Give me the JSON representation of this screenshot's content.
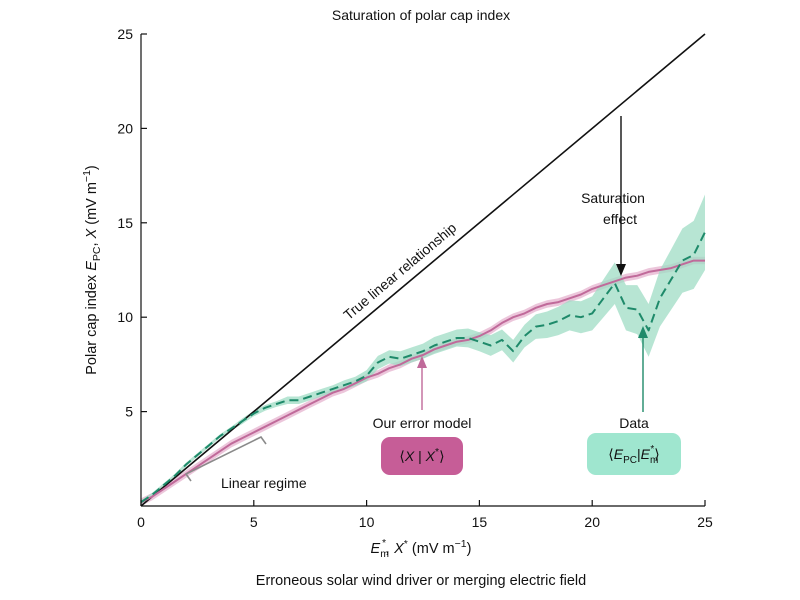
{
  "chart_data": {
    "type": "line",
    "title": "Saturation of polar cap index",
    "caption": "Erroneous solar wind driver or merging electric field",
    "xlim": [
      0,
      25
    ],
    "ylim": [
      0,
      25
    ],
    "grid": false,
    "x_ticks": [
      "0",
      "5",
      "10",
      "15",
      "20",
      "25"
    ],
    "y_ticks": [
      "5",
      "10",
      "15",
      "20",
      "25"
    ],
    "xlabel": {
      "prefix": "E",
      "sub": "m",
      "sup": "*",
      "middle": ", X",
      "sup2": "*",
      "units": " (mV m",
      "units_sup": "−1",
      "close": ")"
    },
    "ylabel": {
      "prefix": "Polar cap index ",
      "var": "E",
      "sub": "PC",
      "middle": ", ",
      "var2": "X",
      "units": " (mV m",
      "units_sup": "−1",
      "close": ")"
    },
    "series": [
      {
        "name": "True linear relationship",
        "color": "#111111",
        "x": [
          0,
          25
        ],
        "y": [
          0,
          25
        ]
      },
      {
        "name": "Our error model",
        "color": "#c06a9a",
        "band_color": "#e6b3cf",
        "x": [
          0,
          0.5,
          1,
          1.5,
          2,
          2.5,
          3,
          3.5,
          4,
          4.5,
          5,
          5.5,
          6,
          6.5,
          7,
          7.5,
          8,
          8.5,
          9,
          9.5,
          10,
          10.5,
          11,
          11.5,
          12,
          12.5,
          13,
          13.5,
          14,
          14.5,
          15,
          15.5,
          16,
          16.5,
          17,
          17.5,
          18,
          18.5,
          19,
          19.5,
          20,
          20.5,
          21,
          21.5,
          22,
          22.5,
          23,
          23.5,
          24,
          24.5,
          25
        ],
        "y": [
          0.2,
          0.5,
          0.9,
          1.3,
          1.7,
          2.1,
          2.5,
          2.9,
          3.3,
          3.6,
          3.9,
          4.2,
          4.5,
          4.8,
          5.1,
          5.4,
          5.7,
          6.0,
          6.2,
          6.5,
          6.8,
          7.0,
          7.3,
          7.5,
          7.8,
          8.0,
          8.3,
          8.5,
          8.7,
          8.8,
          9.0,
          9.3,
          9.7,
          10.0,
          10.2,
          10.5,
          10.7,
          10.8,
          11.0,
          11.2,
          11.5,
          11.7,
          11.9,
          12.1,
          12.2,
          12.4,
          12.5,
          12.6,
          12.8,
          13.0,
          13.0
        ],
        "band": 0.2
      },
      {
        "name": "Data",
        "color": "#1e8a6a",
        "band_color": "#9fdcc4",
        "x": [
          0,
          0.5,
          1,
          1.5,
          2,
          2.5,
          3,
          3.5,
          4,
          4.5,
          5,
          5.5,
          6,
          6.5,
          7,
          7.5,
          8,
          8.5,
          9,
          9.5,
          10,
          10.5,
          11,
          11.5,
          12,
          12.5,
          13,
          13.5,
          14,
          14.5,
          15,
          15.5,
          16,
          16.5,
          17,
          17.5,
          18,
          18.5,
          19,
          19.5,
          20,
          20.5,
          21,
          21.5,
          22,
          22.5,
          23,
          23.5,
          24,
          24.5,
          25
        ],
        "y": [
          0.2,
          0.6,
          1.1,
          1.6,
          2.2,
          2.7,
          3.2,
          3.7,
          4.1,
          4.5,
          4.9,
          5.2,
          5.4,
          5.6,
          5.6,
          5.8,
          6.0,
          6.2,
          6.4,
          6.6,
          6.9,
          7.6,
          7.9,
          7.8,
          8.0,
          8.2,
          8.5,
          8.7,
          8.9,
          8.9,
          8.7,
          8.5,
          8.8,
          8.2,
          9.0,
          9.5,
          9.6,
          9.8,
          10.1,
          10.0,
          10.2,
          11.0,
          11.8,
          10.5,
          10.4,
          9.3,
          11.0,
          12.0,
          13.0,
          13.3,
          14.5
        ],
        "band": [
          0.1,
          0.1,
          0.1,
          0.1,
          0.1,
          0.1,
          0.1,
          0.1,
          0.1,
          0.15,
          0.15,
          0.15,
          0.15,
          0.2,
          0.2,
          0.2,
          0.2,
          0.2,
          0.25,
          0.25,
          0.3,
          0.35,
          0.35,
          0.4,
          0.4,
          0.4,
          0.45,
          0.45,
          0.45,
          0.5,
          0.5,
          0.55,
          0.55,
          0.6,
          0.6,
          0.65,
          0.7,
          0.75,
          0.8,
          0.85,
          0.9,
          1.0,
          1.1,
          1.2,
          1.3,
          1.4,
          1.5,
          1.6,
          1.7,
          1.8,
          2.0
        ]
      }
    ],
    "annotations": {
      "linear_label": "True linear relationship",
      "linear_regime": "Linear regime",
      "saturation_line1": "Saturation",
      "saturation_line2": "effect",
      "error_model": "Our error model",
      "data": "Data"
    },
    "badges": {
      "model": {
        "open": "⟨",
        "var": "X",
        "sep": " | ",
        "var2": "X",
        "sup": "*",
        "close": "⟩",
        "color": "#c65d97"
      },
      "data": {
        "open": "⟨",
        "var": "E",
        "sub": "PC",
        "sep": "|",
        "var2": "E",
        "sub2": "m",
        "sup2": "*",
        "close": "⟩",
        "color": "#9fe6cf"
      }
    }
  }
}
